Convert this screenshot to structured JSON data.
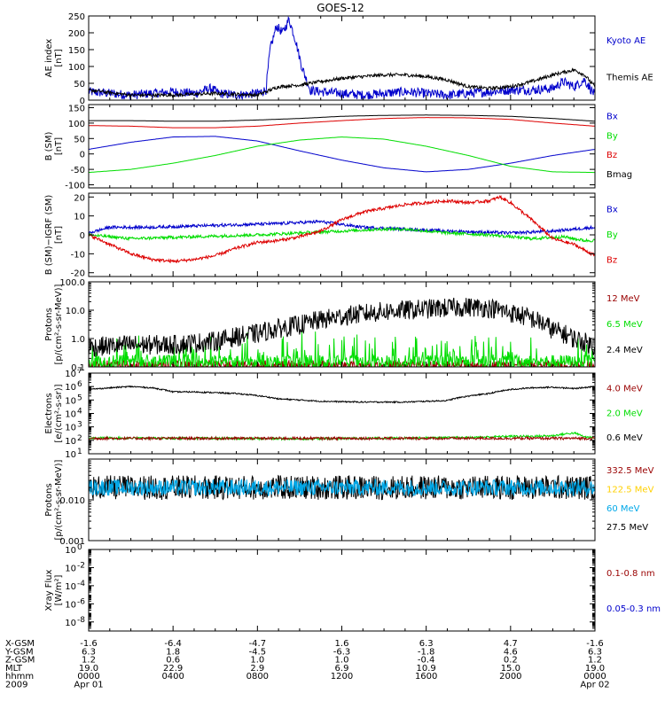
{
  "title": "GOES-12",
  "colors": {
    "black": "#000000",
    "blue": "#0000CC",
    "green": "#00DD00",
    "red": "#DD0000",
    "darkred": "#990000",
    "yellow": "#FFD000",
    "cyan": "#00A8E8"
  },
  "chart_data": [
    {
      "type": "line",
      "id": "ae",
      "ylabel_lines": [
        "AE index",
        "[nT]"
      ],
      "ylim": [
        0,
        250
      ],
      "yscale": "linear",
      "yticks": [
        {
          "v": 0,
          "label": "0"
        },
        {
          "v": 50,
          "label": "50"
        },
        {
          "v": 100,
          "label": "100"
        },
        {
          "v": 150,
          "label": "150"
        },
        {
          "v": 200,
          "label": "200"
        },
        {
          "v": 250,
          "label": "250"
        }
      ],
      "legend": [
        {
          "label": "Kyoto AE",
          "color": "blue"
        },
        {
          "label": "Themis AE",
          "color": "black"
        }
      ],
      "series": [
        {
          "name": "Kyoto AE",
          "color": "blue",
          "noise": 14,
          "x": [
            0,
            1,
            2,
            3,
            4,
            5,
            5.8,
            6.2,
            7,
            8,
            8.4,
            8.6,
            8.9,
            9.2,
            9.5,
            9.8,
            10.1,
            10.5,
            11,
            12,
            13,
            14,
            15,
            16,
            17,
            18,
            19,
            20,
            21,
            22,
            22.5,
            23,
            23.5,
            24
          ],
          "y": [
            25,
            20,
            15,
            20,
            25,
            20,
            35,
            20,
            15,
            20,
            30,
            150,
            220,
            200,
            240,
            180,
            100,
            30,
            25,
            20,
            15,
            20,
            25,
            20,
            15,
            20,
            25,
            30,
            30,
            35,
            55,
            40,
            60,
            15
          ]
        },
        {
          "name": "Themis AE",
          "color": "black",
          "noise": 5,
          "x": [
            0,
            2,
            4,
            6,
            8,
            8.6,
            9,
            10,
            11,
            12,
            13,
            14,
            15,
            16,
            17,
            18,
            19,
            20,
            21,
            22,
            23,
            23.5,
            24
          ],
          "y": [
            30,
            15,
            15,
            20,
            15,
            30,
            40,
            45,
            55,
            65,
            70,
            75,
            75,
            70,
            60,
            40,
            35,
            40,
            55,
            75,
            90,
            75,
            40
          ]
        }
      ]
    },
    {
      "type": "line",
      "id": "bsm",
      "ylabel_lines": [
        "B (SM)",
        "[nT]"
      ],
      "ylim": [
        -110,
        160
      ],
      "yscale": "linear",
      "yticks": [
        {
          "v": -100,
          "label": "-100"
        },
        {
          "v": -50,
          "label": "-50"
        },
        {
          "v": 0,
          "label": "0"
        },
        {
          "v": 50,
          "label": "50"
        },
        {
          "v": 100,
          "label": "100"
        },
        {
          "v": 150,
          "label": "150"
        }
      ],
      "legend": [
        {
          "label": "Bx",
          "color": "blue"
        },
        {
          "label": "By",
          "color": "green"
        },
        {
          "label": "Bz",
          "color": "red"
        },
        {
          "label": "Bmag",
          "color": "black"
        }
      ],
      "series": [
        {
          "name": "Bx",
          "color": "blue",
          "noise": 0,
          "x": [
            0,
            2,
            4,
            6,
            8,
            10,
            12,
            14,
            16,
            18,
            20,
            22,
            24
          ],
          "y": [
            15,
            38,
            55,
            57,
            42,
            10,
            -20,
            -45,
            -58,
            -50,
            -30,
            -5,
            15
          ]
        },
        {
          "name": "By",
          "color": "green",
          "noise": 0,
          "x": [
            0,
            2,
            4,
            6,
            8,
            10,
            12,
            14,
            16,
            18,
            20,
            22,
            24
          ],
          "y": [
            -60,
            -50,
            -30,
            -5,
            25,
            45,
            55,
            48,
            25,
            -5,
            -40,
            -58,
            -60
          ]
        },
        {
          "name": "Bz",
          "color": "red",
          "noise": 0,
          "x": [
            0,
            2,
            4,
            6,
            8,
            10,
            12,
            14,
            16,
            18,
            20,
            22,
            24
          ],
          "y": [
            92,
            90,
            85,
            85,
            90,
            100,
            108,
            115,
            118,
            117,
            112,
            100,
            90
          ]
        },
        {
          "name": "Bmag",
          "color": "black",
          "noise": 0,
          "x": [
            0,
            2,
            4,
            6,
            8,
            10,
            12,
            14,
            16,
            18,
            20,
            22,
            24
          ],
          "y": [
            108,
            108,
            106,
            106,
            110,
            115,
            122,
            125,
            126,
            125,
            122,
            115,
            106
          ]
        }
      ]
    },
    {
      "type": "line",
      "id": "bdiff",
      "ylabel_lines": [
        "B (SM)−IGRF (SM)",
        "[nT]"
      ],
      "ylim": [
        -22,
        22
      ],
      "yscale": "linear",
      "yticks": [
        {
          "v": -20,
          "label": "-20"
        },
        {
          "v": -10,
          "label": "-10"
        },
        {
          "v": 0,
          "label": "0"
        },
        {
          "v": 10,
          "label": "10"
        },
        {
          "v": 20,
          "label": "20"
        }
      ],
      "legend": [
        {
          "label": "Bx",
          "color": "blue"
        },
        {
          "label": "By",
          "color": "green"
        },
        {
          "label": "Bz",
          "color": "red"
        }
      ],
      "series": [
        {
          "name": "Bx",
          "color": "blue",
          "noise": 0.8,
          "x": [
            0,
            1,
            3,
            6,
            9,
            11,
            13,
            15,
            17,
            20,
            22,
            24
          ],
          "y": [
            1,
            4,
            4,
            5,
            6,
            7,
            4,
            3,
            2,
            1,
            2,
            4
          ]
        },
        {
          "name": "By",
          "color": "green",
          "noise": 0.8,
          "x": [
            0,
            2,
            5,
            8,
            10,
            12,
            14,
            15,
            17,
            19,
            21,
            22.5,
            23.5,
            24
          ],
          "y": [
            0,
            -2,
            -1,
            0,
            1,
            2,
            3,
            3,
            1,
            0,
            -2,
            -1,
            -3,
            -3
          ]
        },
        {
          "name": "Bz",
          "color": "red",
          "noise": 0.8,
          "x": [
            0,
            1,
            2,
            3,
            4,
            5,
            6,
            7,
            8,
            9,
            10,
            11,
            12,
            13,
            14,
            15,
            16,
            17,
            18,
            19,
            19.5,
            20,
            21,
            22,
            23,
            24
          ],
          "y": [
            0,
            -5,
            -10,
            -13,
            -14,
            -13,
            -11,
            -7,
            -4,
            -3,
            -1,
            2,
            8,
            12,
            14,
            16,
            17,
            18,
            17,
            18,
            20,
            17,
            8,
            -2,
            -5,
            -11
          ]
        }
      ]
    },
    {
      "type": "line",
      "id": "protons_low",
      "ylabel_lines": [
        "Protons",
        "[p/(cm²-s-sr-MeV)]"
      ],
      "ylim": [
        0.1,
        100
      ],
      "yscale": "log",
      "yticks": [
        {
          "v": 0.1,
          "label": "0.1"
        },
        {
          "v": 1,
          "label": "1.0"
        },
        {
          "v": 10,
          "label": "10.0"
        },
        {
          "v": 100,
          "label": "100.0"
        }
      ],
      "legend": [
        {
          "label": "12 MeV",
          "color": "darkred"
        },
        {
          "label": "6.5 MeV",
          "color": "green"
        },
        {
          "label": "2.4 MeV",
          "color": "black"
        }
      ],
      "series": [
        {
          "name": "12 MeV",
          "color": "darkred",
          "noise_decades": 0.15,
          "spiky": "down",
          "x": [
            0,
            24
          ],
          "y": [
            0.12,
            0.12
          ]
        },
        {
          "name": "6.5 MeV",
          "color": "green",
          "noise_decades": 0.25,
          "spiky": "up",
          "x": [
            0,
            24
          ],
          "y": [
            0.15,
            0.15
          ]
        },
        {
          "name": "2.4 MeV",
          "color": "black",
          "noise_decades": 0.35,
          "x": [
            0,
            2,
            4,
            6,
            8,
            10,
            12,
            14,
            16,
            18,
            19,
            20,
            22,
            23,
            24
          ],
          "y": [
            0.5,
            0.6,
            0.6,
            0.8,
            1.5,
            3,
            6,
            9,
            11,
            13,
            12,
            8,
            2,
            1,
            0.5
          ]
        }
      ]
    },
    {
      "type": "line",
      "id": "electrons",
      "ylabel_lines": [
        "Electrons",
        "[e/(cm²-s-sr)]"
      ],
      "ylim": [
        10,
        10000000
      ],
      "yscale": "log",
      "yticks": [
        {
          "v": 10,
          "label": "10",
          "sup": "1"
        },
        {
          "v": 100,
          "label": "10",
          "sup": "2"
        },
        {
          "v": 1000,
          "label": "10",
          "sup": "3"
        },
        {
          "v": 10000,
          "label": "10",
          "sup": "4"
        },
        {
          "v": 100000,
          "label": "10",
          "sup": "5"
        },
        {
          "v": 1000000,
          "label": "10",
          "sup": "6"
        },
        {
          "v": 10000000,
          "label": "10",
          "sup": "7"
        }
      ],
      "legend": [
        {
          "label": "4.0 MeV",
          "color": "darkred"
        },
        {
          "label": "2.0 MeV",
          "color": "green"
        },
        {
          "label": "0.6 MeV",
          "color": "black"
        }
      ],
      "series": [
        {
          "name": "0.6 MeV",
          "color": "black",
          "noise_decades": 0.05,
          "x": [
            0,
            1,
            2,
            3,
            4,
            5,
            7,
            9,
            11,
            13,
            15,
            17,
            19,
            20,
            21,
            22,
            23,
            24
          ],
          "y": [
            600000,
            800000,
            1000000,
            800000,
            400000,
            400000,
            300000,
            120000,
            80000,
            70000,
            70000,
            90000,
            300000,
            600000,
            800000,
            900000,
            700000,
            1000000
          ]
        },
        {
          "name": "2.0 MeV",
          "color": "green",
          "noise_decades": 0.08,
          "x": [
            0,
            10,
            18,
            20,
            21,
            22,
            23,
            23.5,
            24
          ],
          "y": [
            150,
            130,
            160,
            200,
            200,
            220,
            350,
            180,
            150
          ]
        },
        {
          "name": "4.0 MeV",
          "color": "darkred",
          "noise_decades": 0.1,
          "x": [
            0,
            24
          ],
          "y": [
            140,
            140
          ]
        }
      ]
    },
    {
      "type": "line",
      "id": "protons_high",
      "ylabel_lines": [
        "Protons",
        "[p/(cm²-s-sr-MeV)]"
      ],
      "ylim": [
        0.001,
        0.1
      ],
      "yscale": "log",
      "yticks": [
        {
          "v": 0.001,
          "label": "0.001"
        },
        {
          "v": 0.01,
          "label": "0.010"
        }
      ],
      "legend": [
        {
          "label": "332.5 MeV",
          "color": "darkred"
        },
        {
          "label": "122.5 MeV",
          "color": "yellow"
        },
        {
          "label": "60 MeV",
          "color": "cyan"
        },
        {
          "label": "27.5 MeV",
          "color": "black"
        }
      ],
      "series": [
        {
          "name": "27.5 MeV",
          "color": "black",
          "noise_decades": 0.3,
          "x": [
            0,
            24
          ],
          "y": [
            0.02,
            0.02
          ]
        },
        {
          "name": "60 MeV",
          "color": "cyan",
          "noise_decades": 0.2,
          "x": [
            0,
            24
          ],
          "y": [
            0.02,
            0.02
          ]
        }
      ]
    },
    {
      "type": "line",
      "id": "xray",
      "ylabel_lines": [
        "Xray Flux",
        "[W/m²]"
      ],
      "ylim": [
        1e-09,
        1
      ],
      "yscale": "log",
      "yticks": [
        {
          "v": 1e-08,
          "label": "10",
          "sup": "-8"
        },
        {
          "v": 1e-06,
          "label": "10",
          "sup": "-6"
        },
        {
          "v": 0.0001,
          "label": "10",
          "sup": "-4"
        },
        {
          "v": 0.01,
          "label": "10",
          "sup": "-2"
        },
        {
          "v": 1,
          "label": "10",
          "sup": "0"
        }
      ],
      "legend": [
        {
          "label": "0.1-0.8 nm",
          "color": "darkred"
        },
        {
          "label": "0.05-0.3 nm",
          "color": "blue"
        }
      ],
      "series": []
    }
  ],
  "x_axis": {
    "xlim": [
      0,
      24
    ],
    "tick_hours": [
      0,
      4,
      8,
      12,
      16,
      20,
      24
    ],
    "rows": [
      {
        "label": "X-GSM",
        "values": [
          "-1.6",
          "-6.4",
          "-4.7",
          "1.6",
          "6.3",
          "4.7",
          "-1.6"
        ]
      },
      {
        "label": "Y-GSM",
        "values": [
          "6.3",
          "1.8",
          "-4.5",
          "-6.3",
          "-1.8",
          "4.6",
          "6.3"
        ]
      },
      {
        "label": "Z-GSM",
        "values": [
          "1.2",
          "0.6",
          "1.0",
          "1.0",
          "-0.4",
          "0.2",
          "1.2"
        ]
      },
      {
        "label": "MLT",
        "values": [
          "19.0",
          "22.9",
          "2.9",
          "6.9",
          "10.9",
          "15.0",
          "19.0"
        ]
      },
      {
        "label": "hhmm",
        "values": [
          "0000",
          "0400",
          "0800",
          "1200",
          "1600",
          "2000",
          "0000"
        ]
      },
      {
        "label": "2009",
        "values": [
          "Apr 01",
          "",
          "",
          "",
          "",
          "",
          "Apr 02"
        ]
      }
    ]
  }
}
